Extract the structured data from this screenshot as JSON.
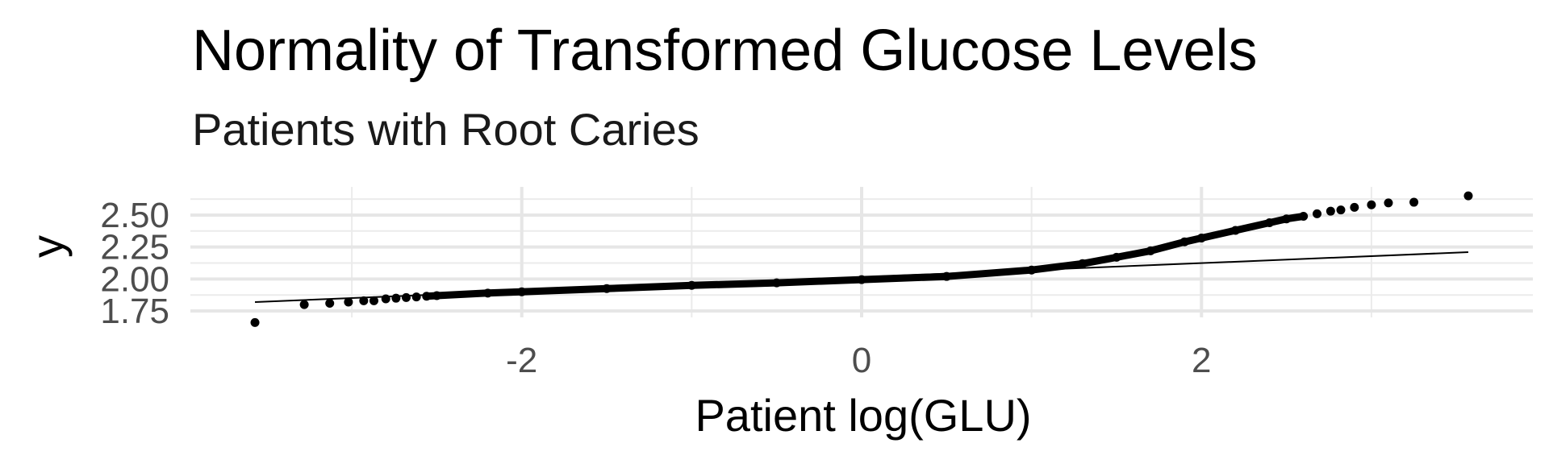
{
  "chart_data": {
    "type": "scatter",
    "title": "Normality of Transformed Glucose Levels",
    "subtitle": "Patients with Root Caries",
    "xlabel": "Patient log(GLU)",
    "ylabel": "y",
    "xlim": [
      -3.95,
      3.95
    ],
    "ylim": [
      1.7,
      2.72
    ],
    "x_ticks": [
      -2,
      0,
      2
    ],
    "x_tick_labels": [
      "-2",
      "0",
      "2"
    ],
    "y_ticks": [
      1.75,
      2.0,
      2.25,
      2.5
    ],
    "y_tick_labels": [
      "1.75",
      "2.00",
      "2.25",
      "2.50"
    ],
    "grid": true,
    "series": [
      {
        "kind": "points",
        "color": "#000000",
        "points": [
          [
            -3.57,
            1.66
          ],
          [
            -3.28,
            1.8
          ],
          [
            -3.13,
            1.81
          ],
          [
            -3.02,
            1.82
          ],
          [
            -2.93,
            1.83
          ],
          [
            -2.87,
            1.83
          ],
          [
            -2.8,
            1.845
          ],
          [
            -2.74,
            1.85
          ],
          [
            -2.68,
            1.855
          ],
          [
            -2.62,
            1.86
          ],
          [
            -2.56,
            1.865
          ],
          [
            -2.5,
            1.87
          ],
          [
            -2.2,
            1.89
          ],
          [
            -2.0,
            1.9
          ],
          [
            -1.5,
            1.925
          ],
          [
            -1.0,
            1.95
          ],
          [
            -0.5,
            1.97
          ],
          [
            0.0,
            1.995
          ],
          [
            0.5,
            2.02
          ],
          [
            1.0,
            2.07
          ],
          [
            1.3,
            2.12
          ],
          [
            1.5,
            2.17
          ],
          [
            1.7,
            2.22
          ],
          [
            1.9,
            2.29
          ],
          [
            2.0,
            2.32
          ],
          [
            2.2,
            2.38
          ],
          [
            2.4,
            2.44
          ],
          [
            2.5,
            2.47
          ],
          [
            2.6,
            2.49
          ],
          [
            2.68,
            2.51
          ],
          [
            2.76,
            2.53
          ],
          [
            2.82,
            2.54
          ],
          [
            2.9,
            2.56
          ],
          [
            3.0,
            2.58
          ],
          [
            3.1,
            2.595
          ],
          [
            3.25,
            2.6
          ],
          [
            3.57,
            2.65
          ]
        ]
      },
      {
        "kind": "reference-line",
        "color": "#000000",
        "points": [
          [
            -3.57,
            1.82
          ],
          [
            3.57,
            2.21
          ]
        ]
      }
    ]
  }
}
